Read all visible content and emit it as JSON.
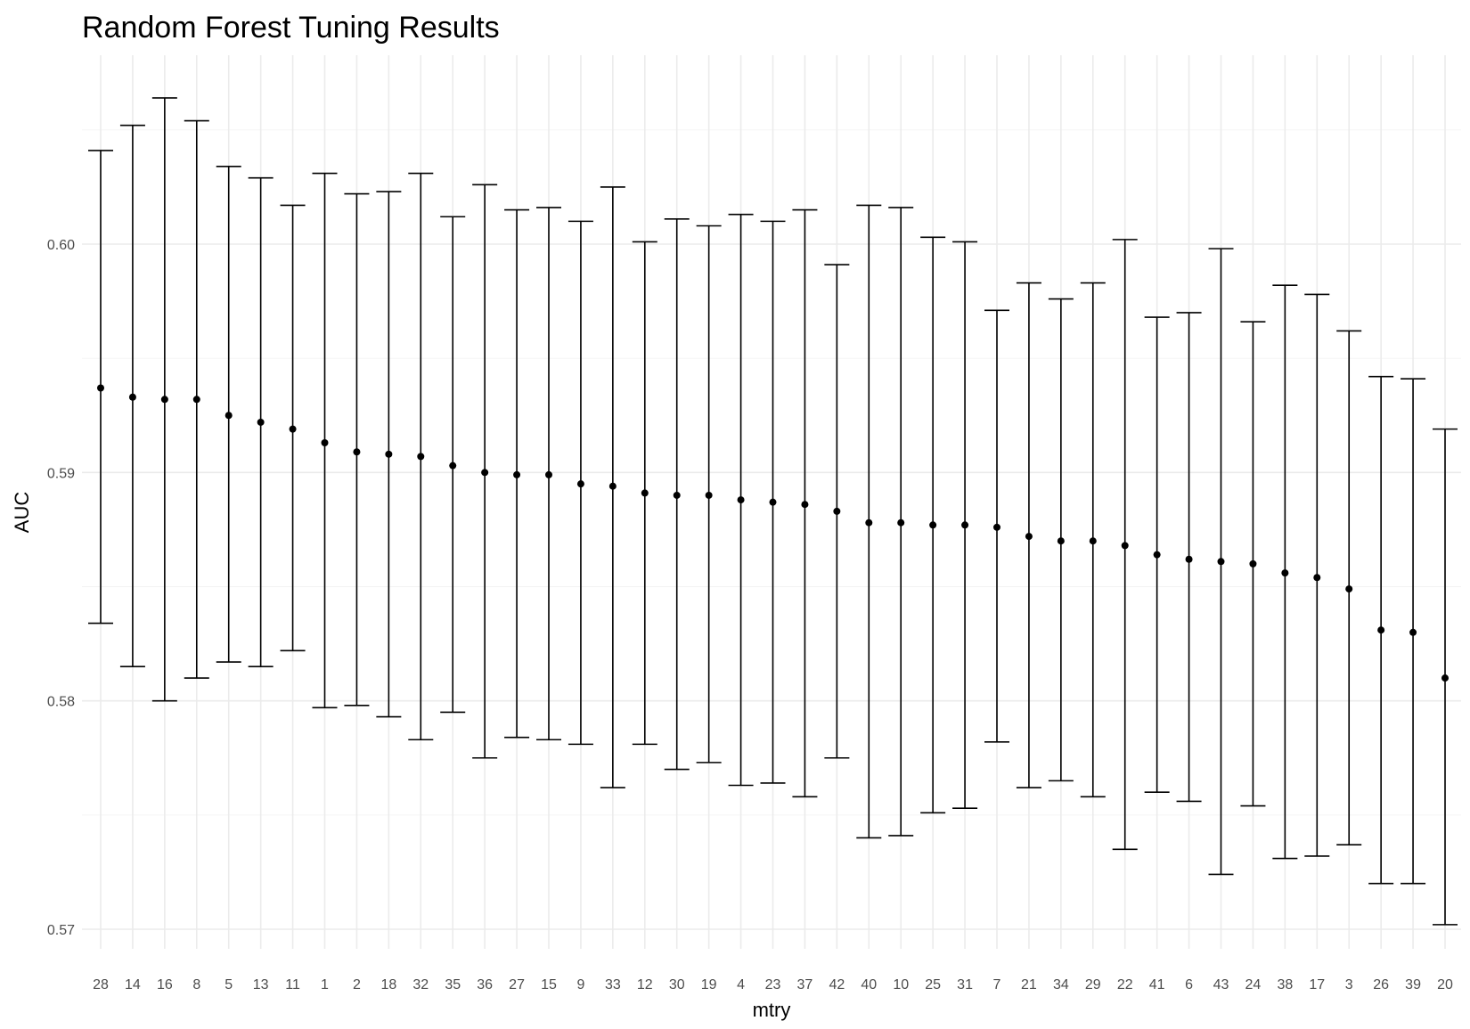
{
  "chart_data": {
    "type": "scatter",
    "title": "Random Forest Tuning Results",
    "xlabel": "mtry",
    "ylabel": "AUC",
    "ylim": [
      0.5685,
      0.6073
    ],
    "y_ticks": [
      "0.57",
      "0.58",
      "0.59",
      "0.60"
    ],
    "y_tick_values": [
      0.57,
      0.58,
      0.59,
      0.6
    ],
    "grid": true,
    "error_bars": true,
    "categories": [
      "28",
      "14",
      "16",
      "8",
      "5",
      "13",
      "11",
      "1",
      "2",
      "18",
      "32",
      "35",
      "36",
      "27",
      "15",
      "9",
      "33",
      "12",
      "30",
      "19",
      "4",
      "23",
      "37",
      "42",
      "40",
      "10",
      "25",
      "31",
      "7",
      "21",
      "34",
      "29",
      "22",
      "41",
      "6",
      "43",
      "24",
      "38",
      "17",
      "3",
      "26",
      "39",
      "20"
    ],
    "series": [
      {
        "values": [
          0.5937,
          0.5933,
          0.5932,
          0.5932,
          0.5925,
          0.5922,
          0.5919,
          0.5913,
          0.5909,
          0.5908,
          0.5907,
          0.5903,
          0.59,
          0.5899,
          0.5899,
          0.5895,
          0.5894,
          0.5891,
          0.589,
          0.589,
          0.5888,
          0.5887,
          0.5886,
          0.5883,
          0.5878,
          0.5878,
          0.5877,
          0.5877,
          0.5876,
          0.5872,
          0.587,
          0.587,
          0.5868,
          0.5864,
          0.5862,
          0.5861,
          0.586,
          0.5856,
          0.5854,
          0.5849,
          0.5831,
          0.583,
          0.581
        ],
        "lower": [
          0.5834,
          0.5815,
          0.58,
          0.581,
          0.5817,
          0.5815,
          0.5822,
          0.5797,
          0.5798,
          0.5793,
          0.5783,
          0.5795,
          0.5775,
          0.5784,
          0.5783,
          0.5781,
          0.5762,
          0.5781,
          0.577,
          0.5773,
          0.5763,
          0.5764,
          0.5758,
          0.5775,
          0.574,
          0.5741,
          0.5751,
          0.5753,
          0.5782,
          0.5762,
          0.5765,
          0.5758,
          0.5735,
          0.576,
          0.5756,
          0.5724,
          0.5754,
          0.5731,
          0.5732,
          0.5737,
          0.572,
          0.572,
          0.5702
        ],
        "upper": [
          0.6041,
          0.6052,
          0.6064,
          0.6054,
          0.6034,
          0.6029,
          0.6017,
          0.6031,
          0.6022,
          0.6023,
          0.6031,
          0.6012,
          0.6026,
          0.6015,
          0.6016,
          0.601,
          0.6025,
          0.6001,
          0.6011,
          0.6008,
          0.6013,
          0.601,
          0.6015,
          0.5991,
          0.6017,
          0.6016,
          0.6003,
          0.6001,
          0.5971,
          0.5983,
          0.5976,
          0.5983,
          0.6002,
          0.5968,
          0.597,
          0.5998,
          0.5966,
          0.5982,
          0.5978,
          0.5962,
          0.5942,
          0.5941,
          0.5919
        ]
      }
    ]
  }
}
